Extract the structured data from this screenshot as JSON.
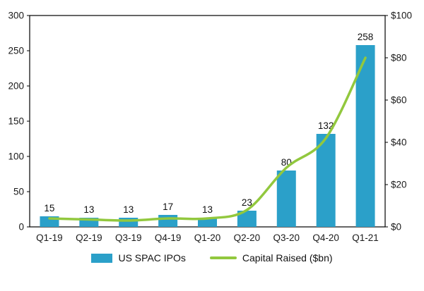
{
  "chart_data": {
    "type": "bar",
    "subtype": "bar+line combo, dual axis",
    "categories": [
      "Q1-19",
      "Q2-19",
      "Q3-19",
      "Q4-19",
      "Q1-20",
      "Q2-20",
      "Q3-20",
      "Q4-20",
      "Q1-21"
    ],
    "series": [
      {
        "name": "US SPAC IPOs",
        "type": "bar",
        "axis": "left",
        "color": "#2BA0C9",
        "values": [
          15,
          13,
          13,
          17,
          13,
          23,
          80,
          132,
          258
        ],
        "data_labels": [
          15,
          13,
          13,
          17,
          13,
          23,
          80,
          132,
          258
        ]
      },
      {
        "name": "Capital Raised ($bn)",
        "type": "line",
        "axis": "right",
        "color": "#92C83E",
        "values": [
          4,
          3.5,
          3,
          4,
          4,
          8,
          28,
          42,
          80
        ]
      }
    ],
    "title": "",
    "xlabel": "",
    "ylabel_left": "",
    "ylabel_right": "",
    "left_axis": {
      "min": 0,
      "max": 300,
      "step": 50,
      "ticks": [
        "0",
        "50",
        "100",
        "150",
        "200",
        "250",
        "300"
      ]
    },
    "right_axis": {
      "min": 0,
      "max": 100,
      "step": 20,
      "ticks": [
        "$0",
        "$20",
        "$40",
        "$60",
        "$80",
        "$100"
      ]
    },
    "grid": "off",
    "legend_position": "bottom",
    "plot_border_color": "#000000"
  }
}
